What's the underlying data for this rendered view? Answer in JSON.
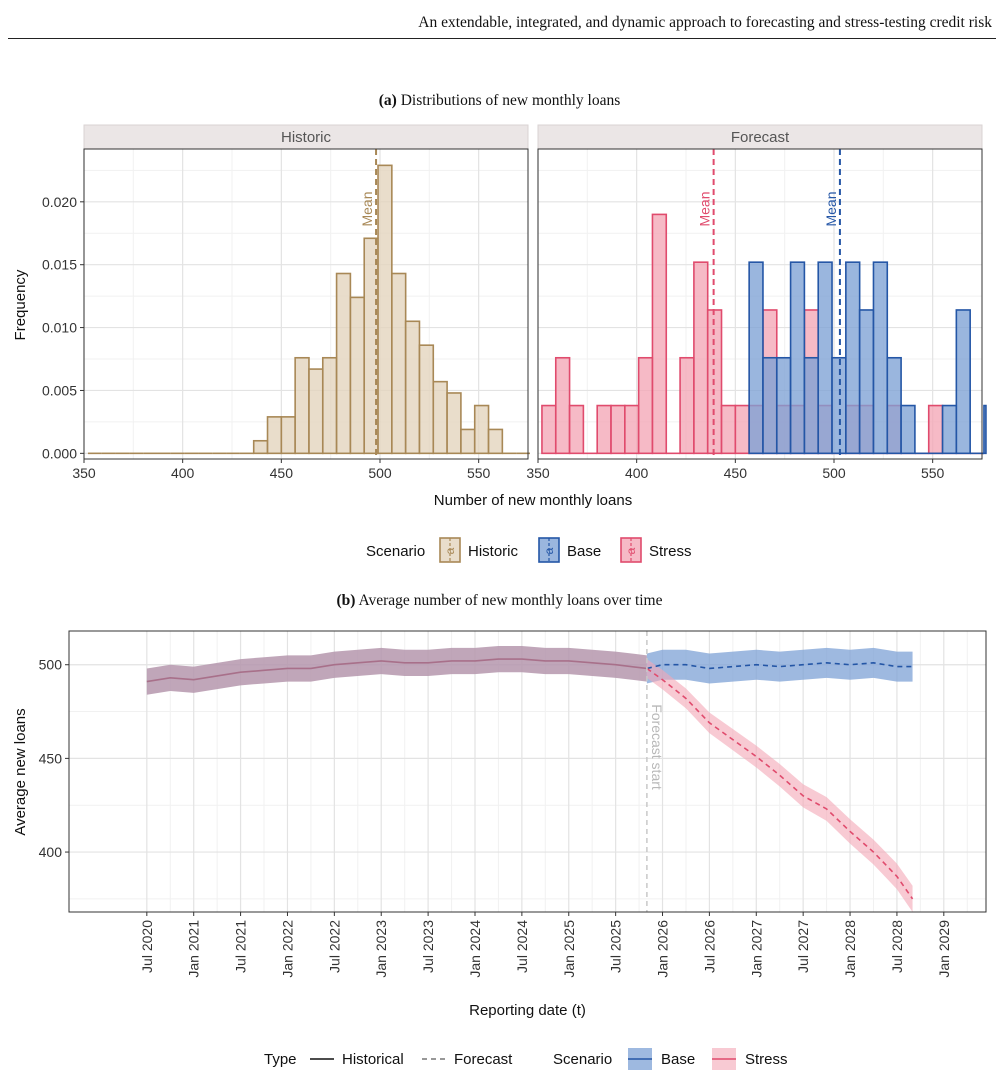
{
  "page": {
    "running_head": "An extendable, integrated, and dynamic approach to forecasting and stress-testing credit risk"
  },
  "colors": {
    "historic": "#a88856",
    "historic_fill": "#e3d3bc",
    "base": "#2456a6",
    "base_fill": "#7ea2d5",
    "stress": "#e04b6d",
    "stress_fill": "#f4a7b6",
    "historic_line": "#a8708a",
    "historic_band": "#b597ad"
  },
  "chart_data": [
    {
      "type": "histogram",
      "caption_label": "(a)",
      "caption_text": "Distributions of new monthly loans",
      "xlabel": "Number of new monthly loans",
      "ylabel": "Frequency",
      "xlim": [
        350,
        575
      ],
      "ylim": [
        0,
        0.023
      ],
      "x_ticks": [
        350,
        400,
        450,
        500,
        550
      ],
      "y_ticks": [
        0.0,
        0.005,
        0.01,
        0.015,
        0.02
      ],
      "y_tick_labels": [
        "0.000",
        "0.005",
        "0.010",
        "0.015",
        "0.020"
      ],
      "bin_width": 7,
      "grid": true,
      "mean_label": "Mean",
      "panels": [
        {
          "name": "Historic",
          "series": [
            {
              "name": "Historic",
              "mean": 498,
              "bins": [
                [
                  355.5,
                  0
                ],
                [
                  362.5,
                  0
                ],
                [
                  369.5,
                  0
                ],
                [
                  376.5,
                  0
                ],
                [
                  383.5,
                  0
                ],
                [
                  390.5,
                  0
                ],
                [
                  397.5,
                  0
                ],
                [
                  404.5,
                  0
                ],
                [
                  411.5,
                  0
                ],
                [
                  418.5,
                  0
                ],
                [
                  425.5,
                  0
                ],
                [
                  432.5,
                  0
                ],
                [
                  439.5,
                  0.001
                ],
                [
                  446.5,
                  0.0029
                ],
                [
                  453.5,
                  0.0029
                ],
                [
                  460.5,
                  0.0076
                ],
                [
                  467.5,
                  0.0067
                ],
                [
                  474.5,
                  0.0076
                ],
                [
                  481.5,
                  0.0143
                ],
                [
                  488.5,
                  0.0124
                ],
                [
                  495.5,
                  0.0171
                ],
                [
                  502.5,
                  0.0229
                ],
                [
                  509.5,
                  0.0143
                ],
                [
                  516.5,
                  0.0105
                ],
                [
                  523.5,
                  0.0086
                ],
                [
                  530.5,
                  0.0057
                ],
                [
                  537.5,
                  0.0048
                ],
                [
                  544.5,
                  0.0019
                ],
                [
                  551.5,
                  0.0038
                ],
                [
                  558.5,
                  0.0019
                ],
                [
                  565.5,
                  0
                ],
                [
                  572.5,
                  0
                ]
              ]
            }
          ]
        },
        {
          "name": "Forecast",
          "series": [
            {
              "name": "Stress",
              "mean": 439,
              "bins": [
                [
                  355.5,
                  0.0038
                ],
                [
                  362.5,
                  0.0076
                ],
                [
                  369.5,
                  0.0038
                ],
                [
                  376.5,
                  0
                ],
                [
                  383.5,
                  0.0038
                ],
                [
                  390.5,
                  0.0038
                ],
                [
                  397.5,
                  0.0038
                ],
                [
                  404.5,
                  0.0076
                ],
                [
                  411.5,
                  0.019
                ],
                [
                  418.5,
                  0
                ],
                [
                  425.5,
                  0.0076
                ],
                [
                  432.5,
                  0.0152
                ],
                [
                  439.5,
                  0.0114
                ],
                [
                  446.5,
                  0.0038
                ],
                [
                  453.5,
                  0.0038
                ],
                [
                  460.5,
                  0.0038
                ],
                [
                  467.5,
                  0.0114
                ],
                [
                  474.5,
                  0.0038
                ],
                [
                  481.5,
                  0.0038
                ],
                [
                  488.5,
                  0.0114
                ],
                [
                  495.5,
                  0.0038
                ],
                [
                  502.5,
                  0
                ],
                [
                  509.5,
                  0.0038
                ],
                [
                  516.5,
                  0.0038
                ],
                [
                  523.5,
                  0
                ],
                [
                  530.5,
                  0.0038
                ],
                [
                  537.5,
                  0
                ],
                [
                  544.5,
                  0
                ],
                [
                  551.5,
                  0.0038
                ],
                [
                  558.5,
                  0
                ],
                [
                  565.5,
                  0
                ],
                [
                  572.5,
                  0
                ]
              ]
            },
            {
              "name": "Base",
              "mean": 503,
              "bins": [
                [
                  460.5,
                  0.0152
                ],
                [
                  467.5,
                  0.0076
                ],
                [
                  474.5,
                  0.0076
                ],
                [
                  481.5,
                  0.0152
                ],
                [
                  488.5,
                  0.0076
                ],
                [
                  495.5,
                  0.0152
                ],
                [
                  502.5,
                  0.0076
                ],
                [
                  509.5,
                  0.0152
                ],
                [
                  516.5,
                  0.0114
                ],
                [
                  523.5,
                  0.0152
                ],
                [
                  530.5,
                  0.0076
                ],
                [
                  537.5,
                  0.0038
                ],
                [
                  544.5,
                  0
                ],
                [
                  551.5,
                  0
                ],
                [
                  558.5,
                  0.0038
                ],
                [
                  565.5,
                  0.0114
                ],
                [
                  572.5,
                  0
                ],
                [
                  579.5,
                  0.0038
                ]
              ]
            }
          ]
        }
      ],
      "legend": {
        "title": "Scenario",
        "entries": [
          "Historic",
          "Base",
          "Stress"
        ],
        "key_glyph": "a",
        "position": "bottom"
      }
    },
    {
      "type": "line",
      "caption_label": "(b)",
      "caption_text": "Average number of new monthly loans over time",
      "xlabel": "Reporting date (t)",
      "ylabel": "Average new loans",
      "ylim": [
        368,
        518
      ],
      "x_ticks": [
        "Jul 2020",
        "Jan 2021",
        "Jul 2021",
        "Jan 2022",
        "Jul 2022",
        "Jan 2023",
        "Jul 2023",
        "Jan 2024",
        "Jul 2024",
        "Jan 2025",
        "Jul 2025",
        "Jan 2026",
        "Jul 2026",
        "Jan 2027",
        "Jul 2027",
        "Jan 2028",
        "Jul 2028",
        "Jan 2029"
      ],
      "y_ticks": [
        400,
        450,
        500
      ],
      "grid": true,
      "annotation": {
        "text": "Forecast start",
        "x": "Nov 2025"
      },
      "series": [
        {
          "name": "Historic",
          "type": "Historical",
          "points": [
            [
              "Jul 2020",
              491
            ],
            [
              "Oct 2020",
              493
            ],
            [
              "Jan 2021",
              492
            ],
            [
              "Apr 2021",
              494
            ],
            [
              "Jul 2021",
              496
            ],
            [
              "Oct 2021",
              497
            ],
            [
              "Jan 2022",
              498
            ],
            [
              "Apr 2022",
              498
            ],
            [
              "Jul 2022",
              500
            ],
            [
              "Oct 2022",
              501
            ],
            [
              "Jan 2023",
              502
            ],
            [
              "Apr 2023",
              501
            ],
            [
              "Jul 2023",
              501
            ],
            [
              "Oct 2023",
              502
            ],
            [
              "Jan 2024",
              502
            ],
            [
              "Apr 2024",
              503
            ],
            [
              "Jul 2024",
              503
            ],
            [
              "Oct 2024",
              502
            ],
            [
              "Jan 2025",
              502
            ],
            [
              "Apr 2025",
              501
            ],
            [
              "Jul 2025",
              500
            ],
            [
              "Nov 2025",
              498
            ]
          ],
          "band_halfwidth": 7
        },
        {
          "name": "Base",
          "type": "Forecast",
          "points": [
            [
              "Nov 2025",
              498
            ],
            [
              "Jan 2026",
              500
            ],
            [
              "Apr 2026",
              500
            ],
            [
              "Jul 2026",
              498
            ],
            [
              "Oct 2026",
              499
            ],
            [
              "Jan 2027",
              500
            ],
            [
              "Apr 2027",
              499
            ],
            [
              "Jul 2027",
              500
            ],
            [
              "Oct 2027",
              501
            ],
            [
              "Jan 2028",
              500
            ],
            [
              "Apr 2028",
              501
            ],
            [
              "Jul 2028",
              499
            ],
            [
              "Sep 2028",
              499
            ]
          ],
          "band_halfwidth": 8
        },
        {
          "name": "Stress",
          "type": "Forecast",
          "points": [
            [
              "Nov 2025",
              498
            ],
            [
              "Jan 2026",
              492
            ],
            [
              "Apr 2026",
              482
            ],
            [
              "Jul 2026",
              469
            ],
            [
              "Oct 2026",
              460
            ],
            [
              "Jan 2027",
              451
            ],
            [
              "Apr 2027",
              441
            ],
            [
              "Jul 2027",
              430
            ],
            [
              "Oct 2027",
              423
            ],
            [
              "Jan 2028",
              411
            ],
            [
              "Apr 2028",
              400
            ],
            [
              "Jul 2028",
              387
            ],
            [
              "Sep 2028",
              375
            ]
          ],
          "band_halfwidth": 5
        }
      ],
      "legend": {
        "type_title": "Type",
        "type_entries": [
          "Historical",
          "Forecast"
        ],
        "scenario_title": "Scenario",
        "scenario_entries": [
          "Base",
          "Stress"
        ],
        "position": "bottom"
      }
    }
  ]
}
